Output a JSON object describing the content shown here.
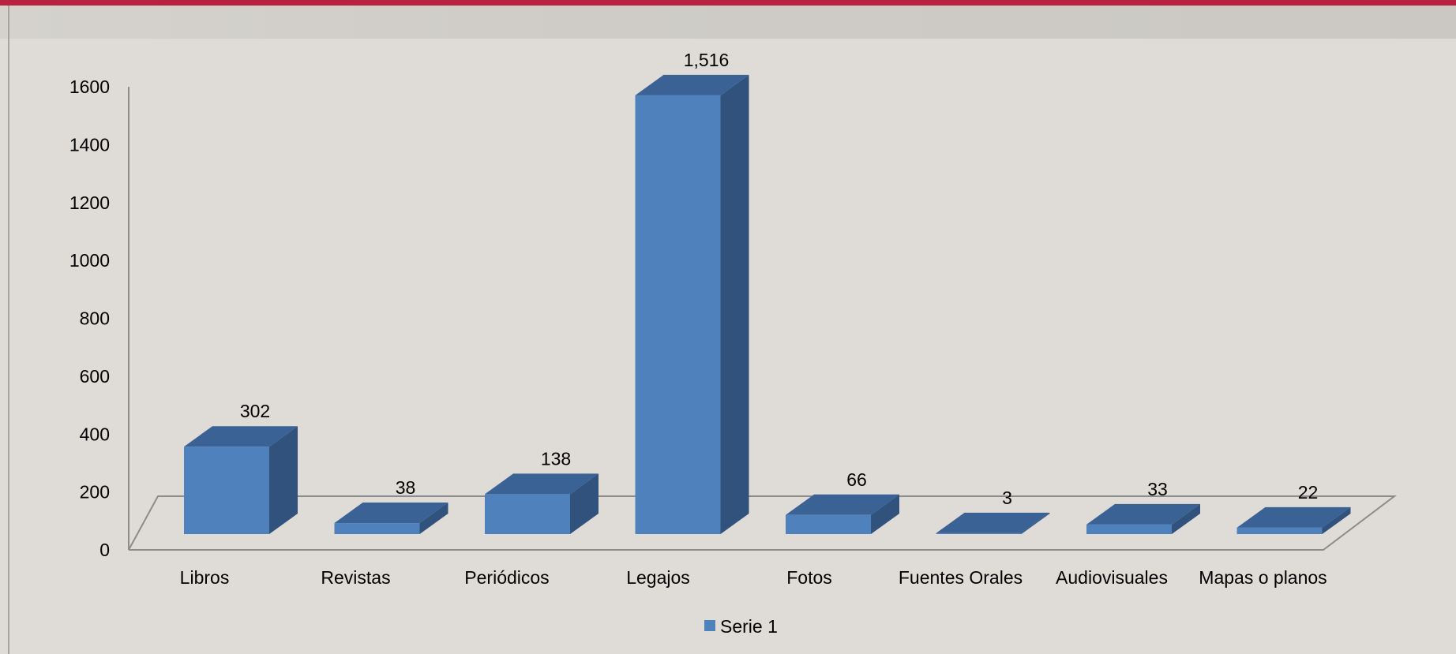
{
  "colors": {
    "bar_front": "#4f81bd",
    "bar_side": "#30527d",
    "bar_top": "#3a6295",
    "floor_line": "#8c8c8c",
    "accent": "#b8213f",
    "background": "#dfdbd6"
  },
  "chart_data": {
    "type": "bar",
    "style": "3d-column",
    "categories": [
      "Libros",
      "Revistas",
      "Periódicos",
      "Legajos",
      "Fotos",
      "Fuentes Orales",
      "Audiovisuales",
      "Mapas o planos"
    ],
    "series": [
      {
        "name": "Serie 1",
        "values": [
          302,
          38,
          138,
          1516,
          66,
          3,
          33,
          22
        ],
        "labels": [
          "302",
          "38",
          "138",
          "1,516",
          "66",
          "3",
          "33",
          "22"
        ]
      }
    ],
    "yticks": [
      "0",
      "200",
      "400",
      "600",
      "800",
      "1000",
      "1200",
      "1400",
      "1600"
    ],
    "ylim": [
      0,
      1600
    ],
    "title": "",
    "xlabel": "",
    "ylabel": "",
    "grid": false,
    "legend_position": "bottom"
  }
}
